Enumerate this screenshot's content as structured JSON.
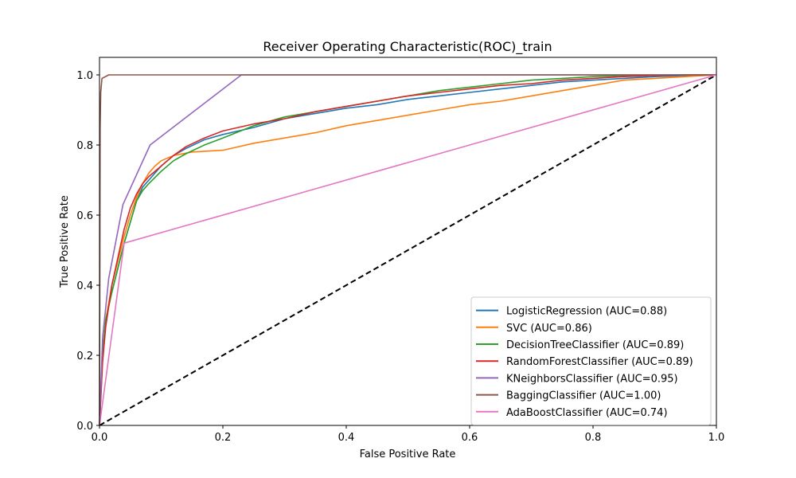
{
  "chart_data": {
    "type": "line",
    "title": "Receiver Operating Characteristic(ROC)_train",
    "xlabel": "False Positive Rate",
    "ylabel": "True Positive Rate",
    "xlim": [
      0,
      1
    ],
    "ylim": [
      0,
      1.05
    ],
    "xticks": [
      0.0,
      0.2,
      0.4,
      0.6,
      0.8,
      1.0
    ],
    "xtick_labels": [
      "0.0",
      "0.2",
      "0.4",
      "0.6",
      "0.8",
      "1.0"
    ],
    "yticks": [
      0.0,
      0.2,
      0.4,
      0.6,
      0.8,
      1.0
    ],
    "ytick_labels": [
      "0.0",
      "0.2",
      "0.4",
      "0.6",
      "0.8",
      "1.0"
    ],
    "grid": false,
    "legend_position": "lower-right",
    "series": [
      {
        "name": "LogisticRegression (AUC=0.88)",
        "color": "#1f77b4",
        "x": [
          0,
          0.005,
          0.01,
          0.02,
          0.03,
          0.04,
          0.05,
          0.06,
          0.07,
          0.08,
          0.1,
          0.12,
          0.14,
          0.17,
          0.2,
          0.25,
          0.3,
          0.35,
          0.4,
          0.45,
          0.5,
          0.55,
          0.6,
          0.65,
          0.7,
          0.75,
          0.8,
          0.85,
          0.9,
          0.95,
          1.0
        ],
        "y": [
          0,
          0.2,
          0.3,
          0.38,
          0.45,
          0.52,
          0.58,
          0.64,
          0.68,
          0.7,
          0.74,
          0.77,
          0.79,
          0.815,
          0.83,
          0.85,
          0.875,
          0.89,
          0.905,
          0.915,
          0.93,
          0.94,
          0.95,
          0.96,
          0.97,
          0.98,
          0.985,
          0.99,
          0.995,
          0.998,
          1.0
        ]
      },
      {
        "name": "SVC (AUC=0.86)",
        "color": "#ff7f0e",
        "x": [
          0,
          0.005,
          0.01,
          0.02,
          0.03,
          0.04,
          0.05,
          0.06,
          0.07,
          0.08,
          0.09,
          0.1,
          0.12,
          0.15,
          0.2,
          0.25,
          0.3,
          0.35,
          0.4,
          0.45,
          0.5,
          0.55,
          0.6,
          0.65,
          0.7,
          0.75,
          0.8,
          0.85,
          0.9,
          0.95,
          1.0
        ],
        "y": [
          0,
          0.2,
          0.3,
          0.4,
          0.47,
          0.54,
          0.6,
          0.65,
          0.69,
          0.72,
          0.74,
          0.755,
          0.77,
          0.78,
          0.785,
          0.805,
          0.82,
          0.835,
          0.855,
          0.87,
          0.885,
          0.9,
          0.915,
          0.925,
          0.94,
          0.955,
          0.97,
          0.985,
          0.99,
          0.995,
          1.0
        ]
      },
      {
        "name": "DecisionTreeClassifier (AUC=0.89)",
        "color": "#2ca02c",
        "x": [
          0,
          0.005,
          0.01,
          0.02,
          0.03,
          0.04,
          0.05,
          0.06,
          0.07,
          0.08,
          0.1,
          0.12,
          0.14,
          0.17,
          0.2,
          0.25,
          0.3,
          0.35,
          0.4,
          0.45,
          0.5,
          0.55,
          0.6,
          0.65,
          0.7,
          0.75,
          0.8,
          0.85,
          0.9,
          0.95,
          1.0
        ],
        "y": [
          0,
          0.2,
          0.3,
          0.38,
          0.45,
          0.52,
          0.58,
          0.64,
          0.67,
          0.69,
          0.725,
          0.755,
          0.775,
          0.8,
          0.82,
          0.855,
          0.88,
          0.895,
          0.91,
          0.925,
          0.94,
          0.955,
          0.965,
          0.975,
          0.985,
          0.99,
          0.995,
          0.998,
          0.999,
          1.0,
          1.0
        ]
      },
      {
        "name": "RandomForestClassifier (AUC=0.89)",
        "color": "#d62728",
        "x": [
          0,
          0.005,
          0.01,
          0.02,
          0.03,
          0.04,
          0.05,
          0.06,
          0.07,
          0.08,
          0.1,
          0.12,
          0.14,
          0.17,
          0.2,
          0.25,
          0.3,
          0.35,
          0.4,
          0.45,
          0.5,
          0.55,
          0.6,
          0.65,
          0.7,
          0.75,
          0.8,
          0.85,
          0.9,
          0.95,
          1.0
        ],
        "y": [
          0,
          0.18,
          0.28,
          0.4,
          0.48,
          0.56,
          0.62,
          0.66,
          0.69,
          0.71,
          0.74,
          0.77,
          0.795,
          0.82,
          0.84,
          0.86,
          0.875,
          0.895,
          0.91,
          0.925,
          0.94,
          0.95,
          0.96,
          0.97,
          0.975,
          0.985,
          0.99,
          0.995,
          0.998,
          1.0,
          1.0
        ]
      },
      {
        "name": "KNeighborsClassifier (AUC=0.95)",
        "color": "#9467bd",
        "x": [
          0,
          0.005,
          0.015,
          0.038,
          0.082,
          0.23,
          1.0
        ],
        "y": [
          0,
          0.25,
          0.42,
          0.63,
          0.8,
          1.0,
          1.0
        ]
      },
      {
        "name": "BaggingClassifier (AUC=1.00)",
        "color": "#8c564b",
        "x": [
          0,
          0.001,
          0.002,
          0.004,
          0.015,
          1.0
        ],
        "y": [
          0,
          0.85,
          0.95,
          0.99,
          1.0,
          1.0
        ]
      },
      {
        "name": "AdaBoostClassifier (AUC=0.74)",
        "color": "#e377c2",
        "x": [
          0,
          0.04,
          1.0
        ],
        "y": [
          0,
          0.52,
          1.0
        ]
      }
    ],
    "reference_line": {
      "x": [
        0,
        1
      ],
      "y": [
        0,
        1
      ],
      "color": "#000000",
      "dashed": true
    }
  }
}
